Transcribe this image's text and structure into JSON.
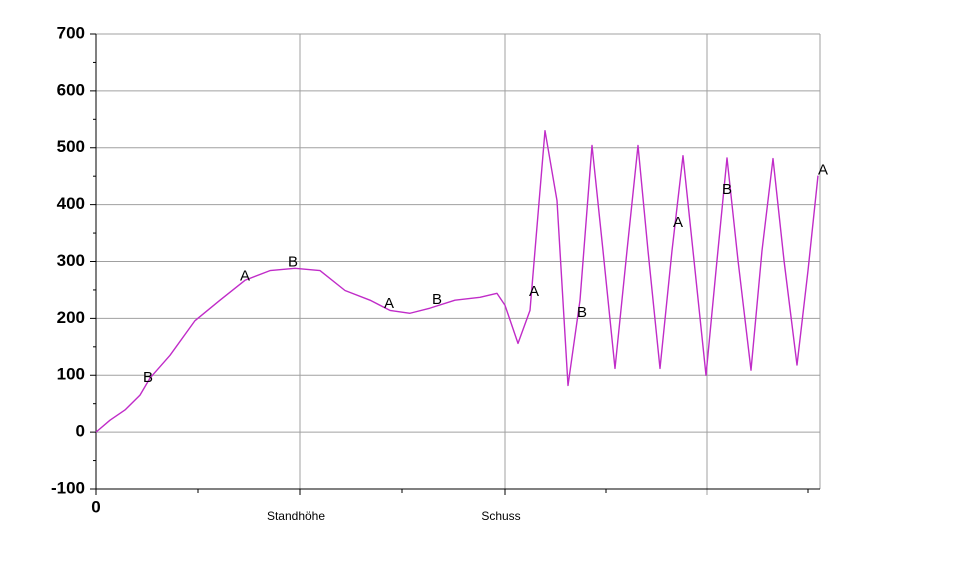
{
  "chart_data": {
    "type": "line",
    "x": [
      0,
      14,
      29,
      44,
      54,
      74,
      99,
      124,
      149,
      174,
      199,
      224,
      249,
      274,
      294,
      314,
      334,
      359,
      384,
      401,
      409,
      422,
      434,
      449,
      461,
      472,
      484,
      496,
      507,
      519,
      531,
      542,
      552,
      564,
      576,
      587,
      598,
      610,
      620,
      631,
      642,
      655,
      666,
      677,
      688,
      701,
      712,
      722
    ],
    "series": [
      {
        "color": "#c02cc8",
        "values": [
          0,
          21,
          39,
          65,
          95,
          135,
          196,
          232,
          267,
          284,
          288,
          284,
          249,
          232,
          214,
          209,
          218,
          232,
          237,
          244,
          223,
          156,
          214,
          530,
          407,
          82,
          232,
          504,
          319,
          112,
          319,
          504,
          319,
          112,
          319,
          486,
          302,
          100,
          284,
          482,
          302,
          109,
          319,
          481,
          302,
          118,
          284,
          451
        ]
      }
    ],
    "xlim": [
      0,
      724
    ],
    "xticks": [
      0,
      {
        "value": 204,
        "label": "Standhöhe"
      },
      {
        "value": 409,
        "label": "Schuss"
      }
    ],
    "xgrid": [
      204,
      409,
      611
    ],
    "xminor": [
      102,
      306,
      510,
      712
    ],
    "ylim": [
      -100,
      700
    ],
    "yticks": [
      -100,
      0,
      100,
      200,
      300,
      400,
      500,
      600,
      700
    ],
    "yminor": [
      -50,
      50,
      150,
      250,
      350,
      450,
      550,
      650
    ],
    "grid": true,
    "annotations": [
      {
        "text": "B",
        "x": 52,
        "y": 95
      },
      {
        "text": "A",
        "x": 149,
        "y": 274
      },
      {
        "text": "B",
        "x": 197,
        "y": 298
      },
      {
        "text": "A",
        "x": 293,
        "y": 225
      },
      {
        "text": "B",
        "x": 341,
        "y": 232
      },
      {
        "text": "A",
        "x": 438,
        "y": 246
      },
      {
        "text": "B",
        "x": 486,
        "y": 209
      },
      {
        "text": "A",
        "x": 582,
        "y": 368
      },
      {
        "text": "B",
        "x": 631,
        "y": 426
      },
      {
        "text": "A",
        "x": 727,
        "y": 460
      }
    ]
  }
}
